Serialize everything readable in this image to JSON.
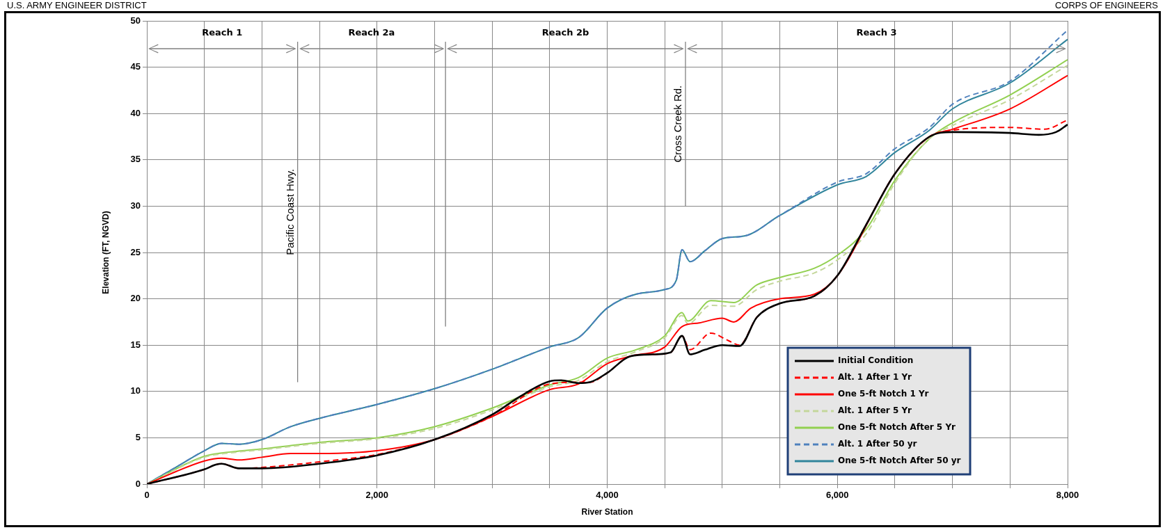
{
  "chart_data": {
    "type": "line",
    "xlabel": "River Station",
    "ylabel": "Elevation (FT, NGVD)",
    "xlim": [
      0,
      8000
    ],
    "ylim": [
      0,
      50
    ],
    "xticks": [
      0,
      {
        "value": 500,
        "label": null
      },
      {
        "value": 1000,
        "label": null
      },
      {
        "value": 1500,
        "label": null
      },
      {
        "value": 2000,
        "label": "2,000"
      },
      {
        "value": 2500,
        "label": null
      },
      {
        "value": 3000,
        "label": null
      },
      {
        "value": 3500,
        "label": null
      },
      {
        "value": 4000,
        "label": "4,000"
      },
      {
        "value": 4500,
        "label": null
      },
      {
        "value": 5000,
        "label": null
      },
      {
        "value": 5500,
        "label": null
      },
      {
        "value": 6000,
        "label": "6,000"
      },
      {
        "value": 6500,
        "label": null
      },
      {
        "value": 7000,
        "label": null
      },
      {
        "value": 7500,
        "label": null
      },
      {
        "value": 8000,
        "label": "8,000"
      }
    ],
    "yticks": [
      0,
      5,
      10,
      15,
      20,
      25,
      30,
      35,
      40,
      45,
      50
    ],
    "grid": true,
    "legend": "bottom right",
    "marker": "none",
    "ref_lines": [
      {
        "axis": "x",
        "value": 1310,
        "label": "Pacific Coast Hwy."
      },
      {
        "axis": "x",
        "value": 2595,
        "label": null
      },
      {
        "axis": "x",
        "value": 4680,
        "label": "Cross Creek Rd."
      }
    ],
    "annotations": [
      "U.S. ARMY ENGINEER DISTRICT",
      "CORPS OF ENGINEERS",
      "Reach 1",
      "Reach 2a",
      "Reach 2b",
      "Reach 3"
    ],
    "series": [
      {
        "name": "Initial Condition",
        "color": "#000000",
        "line_style": "solid",
        "x": [
          0,
          500,
          600,
          650,
          800,
          1000,
          1500,
          2000,
          2500,
          3000,
          3250,
          3500,
          3600,
          3750,
          3850,
          4000,
          4200,
          4400,
          4550,
          4650,
          4720,
          4850,
          5000,
          5150,
          5300,
          5500,
          5800,
          6000,
          6250,
          6500,
          6800,
          7000,
          7500,
          7750,
          7900,
          8000
        ],
        "values": [
          0,
          1.6,
          2.1,
          2.2,
          1.7,
          1.7,
          2.2,
          3.1,
          4.8,
          7.5,
          9.5,
          11.1,
          11.2,
          10.9,
          11.0,
          12.0,
          13.8,
          14.0,
          14.2,
          16.0,
          14.0,
          14.5,
          15.0,
          14.9,
          18.0,
          19.5,
          20.3,
          22.5,
          28,
          33.5,
          37.5,
          38.0,
          37.9,
          37.7,
          38.0,
          38.8
        ]
      },
      {
        "name": "Alt. 1 After 1 Yr",
        "color": "#ff0000",
        "line_style": "dashed",
        "x": [
          0,
          500,
          600,
          650,
          800,
          1000,
          1500,
          2000,
          2500,
          3000,
          3500,
          3750,
          3850,
          4000,
          4200,
          4400,
          4550,
          4650,
          4720,
          4900,
          5050,
          5150,
          5300,
          5500,
          5800,
          6000,
          6250,
          6500,
          6800,
          7000,
          7500,
          7800,
          8000
        ],
        "values": [
          0,
          1.6,
          2.1,
          2.2,
          1.7,
          1.8,
          2.4,
          3.2,
          4.8,
          7.3,
          10.8,
          11.0,
          11.0,
          12.0,
          13.8,
          14.0,
          14.2,
          16.0,
          14.5,
          16.3,
          15.5,
          15.0,
          18.0,
          19.5,
          20.3,
          22.5,
          28,
          33.5,
          37.5,
          38.2,
          38.5,
          38.3,
          39.3
        ]
      },
      {
        "name": "One 5-ft Notch 1 Yr",
        "color": "#ff0000",
        "line_style": "solid",
        "x": [
          0,
          500,
          650,
          800,
          1000,
          1250,
          1500,
          2000,
          2500,
          3000,
          3500,
          3750,
          4000,
          4200,
          4500,
          4650,
          4800,
          5000,
          5100,
          5250,
          5500,
          5800,
          6000,
          6500,
          6800,
          7000,
          7500,
          8000
        ],
        "values": [
          0,
          2.5,
          2.8,
          2.6,
          2.9,
          3.3,
          3.3,
          3.6,
          4.8,
          7.3,
          10.2,
          10.8,
          13.0,
          13.8,
          14.8,
          17.0,
          17.4,
          17.9,
          17.5,
          19.0,
          20.0,
          20.5,
          22.5,
          33.5,
          37.5,
          38.3,
          40.5,
          44.1
        ]
      },
      {
        "name": "Alt. 1 After 5 Yr",
        "color": "#c4d79b",
        "line_style": "dashed",
        "x": [
          0,
          500,
          750,
          1000,
          1500,
          2000,
          2500,
          3000,
          3500,
          3750,
          4000,
          4250,
          4500,
          4650,
          4700,
          4900,
          5100,
          5300,
          5500,
          5800,
          6000,
          6250,
          6500,
          6800,
          7000,
          7500,
          8000
        ],
        "values": [
          0,
          2.9,
          3.4,
          3.7,
          4.4,
          4.9,
          6.0,
          8.0,
          10.5,
          11.2,
          13.2,
          14.3,
          15.8,
          18.2,
          17.3,
          19.3,
          19.2,
          21,
          21.9,
          22.8,
          24.2,
          27,
          32.5,
          37.3,
          38.7,
          41.5,
          45.2
        ]
      },
      {
        "name": "One 5-ft Notch After 5 Yr",
        "color": "#92d050",
        "line_style": "solid",
        "x": [
          0,
          500,
          750,
          1000,
          1500,
          2000,
          2500,
          3000,
          3500,
          3750,
          4000,
          4250,
          4500,
          4650,
          4700,
          4900,
          5100,
          5300,
          5500,
          5800,
          6000,
          6250,
          6500,
          6800,
          7000,
          7500,
          8000
        ],
        "values": [
          0,
          3.0,
          3.5,
          3.8,
          4.5,
          5.0,
          6.2,
          8.2,
          10.7,
          11.5,
          13.6,
          14.5,
          16.0,
          18.5,
          17.6,
          19.8,
          19.6,
          21.5,
          22.3,
          23.3,
          24.7,
          27.5,
          32.8,
          37.3,
          39.0,
          42.0,
          45.8
        ]
      },
      {
        "name": "Alt. 1 After 50 yr",
        "color": "#4f81bd",
        "line_style": "dashed",
        "x": [
          0,
          250,
          500,
          650,
          800,
          1000,
          1250,
          1500,
          2000,
          2500,
          3000,
          3500,
          3750,
          4000,
          4250,
          4500,
          4600,
          4650,
          4720,
          4850,
          5000,
          5200,
          5500,
          6000,
          6250,
          6500,
          6800,
          7000,
          7500,
          8000
        ],
        "values": [
          0,
          1.8,
          3.6,
          4.4,
          4.3,
          4.8,
          6.2,
          7.1,
          8.6,
          10.3,
          12.4,
          14.8,
          15.8,
          19.0,
          20.5,
          21.0,
          22.0,
          25.3,
          24.0,
          25.2,
          26.5,
          26.8,
          29,
          32.6,
          33.5,
          36.2,
          38.5,
          41.0,
          43.5,
          49.0
        ]
      },
      {
        "name": "One 5-ft Notch After 50 yr",
        "color": "#31859c",
        "line_style": "solid",
        "x": [
          0,
          250,
          500,
          650,
          800,
          1000,
          1250,
          1500,
          2000,
          2500,
          3000,
          3500,
          3750,
          4000,
          4250,
          4500,
          4600,
          4650,
          4720,
          4850,
          5000,
          5200,
          5500,
          6000,
          6250,
          6500,
          6800,
          7000,
          7500,
          8000
        ],
        "values": [
          0,
          1.8,
          3.6,
          4.4,
          4.3,
          4.8,
          6.2,
          7.1,
          8.6,
          10.3,
          12.4,
          14.8,
          15.8,
          19.0,
          20.5,
          21.0,
          22.0,
          25.3,
          24.0,
          25.2,
          26.5,
          26.8,
          29,
          32.3,
          33.2,
          35.8,
          38.2,
          40.5,
          43.3,
          48.0
        ]
      }
    ]
  }
}
